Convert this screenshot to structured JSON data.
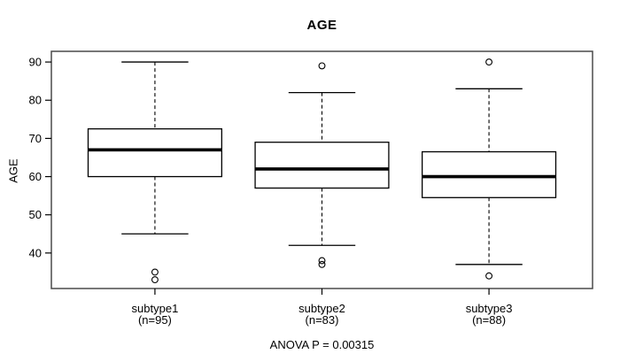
{
  "figure": {
    "title": "AGE",
    "y_axis_title": "AGE",
    "caption": "ANOVA P = 0.00315"
  },
  "chart_data": {
    "type": "boxplot",
    "title": "AGE",
    "xlabel": "",
    "ylabel": "AGE",
    "caption": "ANOVA P = 0.00315",
    "ylim": [
      30.7,
      92.8
    ],
    "yticks": [
      40,
      50,
      60,
      70,
      80,
      90
    ],
    "xlim": [
      0.38,
      3.62
    ],
    "box_width": 0.8,
    "staple_width": 0.4,
    "whisker_linestyle": "dashed",
    "grid": false,
    "legend": "none",
    "groups": [
      {
        "label": "subtype1",
        "count_label": "(n=95)",
        "n": 95,
        "position": 1,
        "stats": {
          "whisker_low": 45,
          "q1": 60,
          "median": 67,
          "q3": 72.5,
          "whisker_high": 90
        },
        "outliers": [
          35,
          33
        ]
      },
      {
        "label": "subtype2",
        "count_label": "(n=83)",
        "n": 83,
        "position": 2,
        "stats": {
          "whisker_low": 42,
          "q1": 57,
          "median": 62,
          "q3": 69,
          "whisker_high": 82
        },
        "outliers": [
          89,
          38,
          37
        ]
      },
      {
        "label": "subtype3",
        "count_label": "(n=88)",
        "n": 88,
        "position": 3,
        "stats": {
          "whisker_low": 37,
          "q1": 54.5,
          "median": 60,
          "q3": 66.5,
          "whisker_high": 83
        },
        "outliers": [
          90,
          34
        ]
      }
    ],
    "colors": {
      "line": "#000000",
      "text": "#000000",
      "box_fill": "#ffffff",
      "plot_border": "#4a4a4a",
      "background": "#ffffff"
    }
  }
}
